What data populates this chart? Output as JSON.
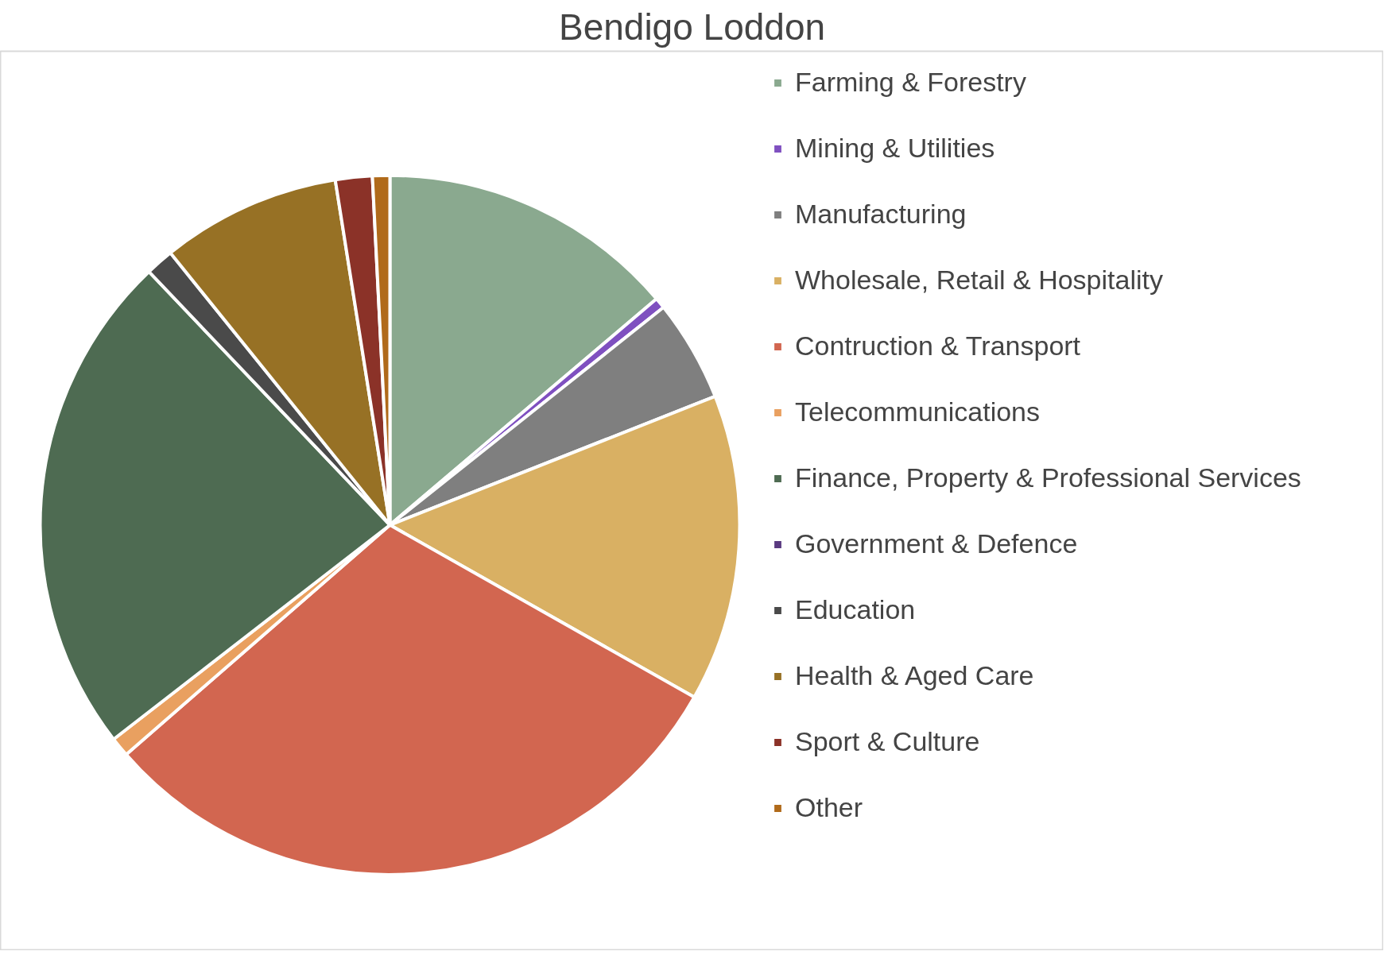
{
  "chart_data": {
    "type": "pie",
    "title": "Bendigo Loddon",
    "categories": [
      "Farming & Forestry",
      "Mining & Utilities",
      "Manufacturing",
      "Wholesale, Retail & Hospitality",
      "Contruction & Transport",
      "Telecommunications",
      "Finance, Property & Professional Services",
      "Government & Defence",
      "Education",
      "Health & Aged Care",
      "Sport & Culture",
      "Other"
    ],
    "values": [
      13.8,
      0.5,
      4.7,
      14.2,
      30.4,
      0.9,
      23.4,
      0,
      1.3,
      8.3,
      1.7,
      0.8
    ],
    "colors": [
      "#8aa98f",
      "#7f50c0",
      "#7f7f7f",
      "#d9b063",
      "#d26650",
      "#e9a060",
      "#4e6b52",
      "#5a3a80",
      "#4a4a4a",
      "#977125",
      "#8b3228",
      "#b06a1a"
    ],
    "legend": "right"
  }
}
